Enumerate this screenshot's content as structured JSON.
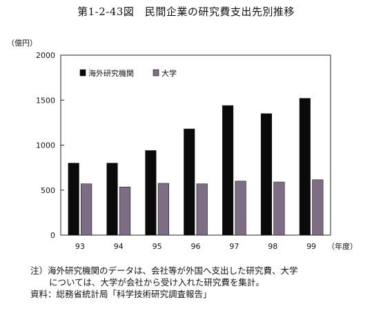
{
  "figure": {
    "title": "第1-2-43図　民間企業の研究費支出先別推移"
  },
  "chart_data": {
    "type": "bar",
    "categories": [
      "93",
      "94",
      "95",
      "96",
      "97",
      "98",
      "99"
    ],
    "series": [
      {
        "name": "海外研究機関",
        "color": "#0a0a0a",
        "values": [
          800,
          800,
          940,
          1180,
          1440,
          1350,
          1520
        ]
      },
      {
        "name": "大学",
        "color": "#7d6e86",
        "values": [
          570,
          535,
          575,
          570,
          600,
          590,
          615
        ]
      }
    ],
    "y_unit": "（億円）",
    "x_unit": "（年度）",
    "ylim": [
      0,
      2000
    ],
    "yticks": [
      0,
      500,
      1000,
      1500,
      2000
    ],
    "grid": false,
    "legend_position": "top-left"
  },
  "notes": {
    "line1": "注）海外研究機関のデータは、会社等が外国へ支出した研究費、大学",
    "line2": "については、大学が会社から受け入れた研究費を集計。",
    "line3": "資料：総務省統計局「科学技術研究調査報告」"
  }
}
